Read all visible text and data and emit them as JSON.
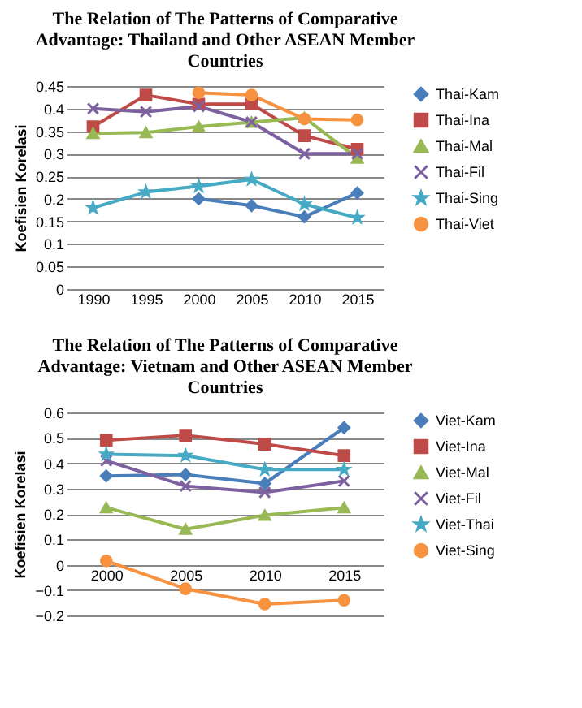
{
  "chart_data": [
    {
      "type": "line",
      "title": "The Relation of The Patterns of Comparative Advantage: Thailand and Other ASEAN Member Countries",
      "ylabel": "Koefisien Korelasi",
      "categories": [
        "1990",
        "1995",
        "2000",
        "2005",
        "2010",
        "2015"
      ],
      "ylim": [
        0,
        0.45
      ],
      "yticks": [
        0,
        0.05,
        0.1,
        0.15,
        0.2,
        0.25,
        0.3,
        0.35,
        0.4,
        0.45
      ],
      "grid": "y",
      "legend": "right",
      "series": [
        {
          "name": "Thai-Kam",
          "color": "#4a7ebb",
          "marker": "diamond",
          "values": [
            null,
            null,
            0.2,
            0.185,
            0.16,
            0.213
          ]
        },
        {
          "name": "Thai-Ina",
          "color": "#be4b48",
          "marker": "square",
          "values": [
            0.36,
            0.43,
            0.41,
            0.41,
            0.34,
            0.31
          ]
        },
        {
          "name": "Thai-Mal",
          "color": "#98b954",
          "marker": "triangle",
          "values": [
            0.345,
            0.347,
            0.36,
            0.37,
            0.38,
            0.29
          ]
        },
        {
          "name": "Thai-Fil",
          "color": "#7d60a0",
          "marker": "cross",
          "values": [
            0.4,
            0.393,
            0.405,
            0.37,
            0.3,
            0.3
          ]
        },
        {
          "name": "Thai-Sing",
          "color": "#46aac5",
          "marker": "star",
          "values": [
            0.18,
            0.215,
            0.228,
            0.243,
            0.188,
            0.158
          ]
        },
        {
          "name": "Thai-Viet",
          "color": "#f69240",
          "marker": "circle",
          "values": [
            null,
            null,
            0.435,
            0.43,
            0.377,
            0.375
          ]
        }
      ]
    },
    {
      "type": "line",
      "title": "The Relation of The Patterns of Comparative Advantage: Vietnam and Other ASEAN Member Countries",
      "ylabel": "Koefisien Korelasi",
      "categories": [
        "2000",
        "2005",
        "2010",
        "2015"
      ],
      "ylim": [
        -0.2,
        0.6
      ],
      "yticks": [
        -0.2,
        -0.1,
        0,
        0.1,
        0.2,
        0.3,
        0.4,
        0.5,
        0.6
      ],
      "grid": "y",
      "legend": "right",
      "series": [
        {
          "name": "Viet-Kam",
          "color": "#4a7ebb",
          "marker": "diamond",
          "values": [
            0.35,
            0.355,
            0.32,
            0.54
          ]
        },
        {
          "name": "Viet-Ina",
          "color": "#be4b48",
          "marker": "square",
          "values": [
            0.49,
            0.51,
            0.475,
            0.43
          ]
        },
        {
          "name": "Viet-Mal",
          "color": "#98b954",
          "marker": "triangle",
          "values": [
            0.225,
            0.14,
            0.195,
            0.225
          ]
        },
        {
          "name": "Viet-Fil",
          "color": "#7d60a0",
          "marker": "cross",
          "values": [
            0.41,
            0.31,
            0.285,
            0.33
          ]
        },
        {
          "name": "Viet-Thai",
          "color": "#46aac5",
          "marker": "star",
          "values": [
            0.435,
            0.43,
            0.375,
            0.375
          ]
        },
        {
          "name": "Viet-Sing",
          "color": "#f69240",
          "marker": "circle",
          "values": [
            0.015,
            -0.095,
            -0.155,
            -0.14
          ]
        }
      ]
    }
  ]
}
